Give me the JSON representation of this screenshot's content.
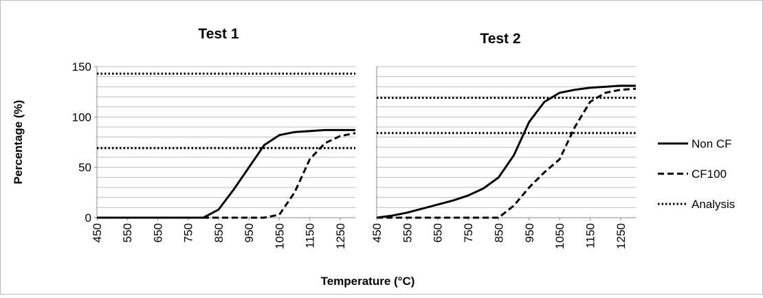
{
  "chart_data": [
    {
      "type": "line",
      "title": "Test 1",
      "ylabel": "Percentage (%)",
      "x": [
        450,
        500,
        550,
        600,
        650,
        700,
        750,
        800,
        850,
        900,
        950,
        1000,
        1050,
        1100,
        1150,
        1200,
        1250,
        1300
      ],
      "series": [
        {
          "name": "Non CF",
          "color": "#000000",
          "style": "solid",
          "values": [
            0,
            0,
            0,
            0,
            0,
            0,
            0,
            0,
            8,
            28,
            50,
            72,
            82,
            85,
            86,
            87,
            87,
            87
          ]
        },
        {
          "name": "CF100",
          "color": "#000000",
          "style": "dashed",
          "values": [
            0,
            0,
            0,
            0,
            0,
            0,
            0,
            0,
            0,
            0,
            0,
            0,
            3,
            25,
            58,
            74,
            81,
            84
          ]
        }
      ],
      "hlines": {
        "name": "Analysis",
        "color": "#000000",
        "style": "dotted",
        "values": [
          143,
          69
        ]
      },
      "xlim": [
        450,
        1300
      ],
      "xticks": [
        450,
        550,
        650,
        750,
        850,
        950,
        1050,
        1150,
        1250
      ],
      "ylim": [
        0,
        150
      ],
      "yticks": [
        0,
        50,
        100,
        150
      ],
      "ygrid_step": 10,
      "grid": true
    },
    {
      "type": "line",
      "title": "Test 2",
      "xlabel": "Temperature (°C)",
      "x": [
        450,
        500,
        550,
        600,
        650,
        700,
        750,
        800,
        850,
        900,
        950,
        1000,
        1050,
        1100,
        1150,
        1200,
        1250,
        1300
      ],
      "series": [
        {
          "name": "Non CF",
          "color": "#000000",
          "style": "solid",
          "values": [
            0,
            2,
            5,
            9,
            13,
            17,
            22,
            29,
            40,
            62,
            95,
            115,
            124,
            127,
            129,
            130,
            131,
            131
          ]
        },
        {
          "name": "CF100",
          "color": "#000000",
          "style": "dashed",
          "values": [
            0,
            0,
            0,
            0,
            0,
            0,
            0,
            0,
            0,
            12,
            30,
            45,
            58,
            90,
            115,
            124,
            127,
            128
          ]
        }
      ],
      "hlines": {
        "name": "Analysis",
        "color": "#000000",
        "style": "dotted",
        "values": [
          119,
          84
        ]
      },
      "xlim": [
        450,
        1300
      ],
      "xticks": [
        450,
        550,
        650,
        750,
        850,
        950,
        1050,
        1150,
        1250
      ],
      "ylim": [
        0,
        150
      ],
      "ygrid_step": 10,
      "grid": true,
      "legend": "right"
    }
  ]
}
